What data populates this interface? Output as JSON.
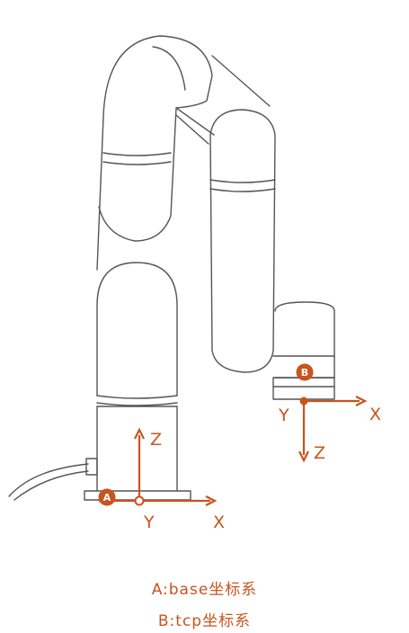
{
  "frame_a": {
    "badge": "A",
    "axis_z": "Z",
    "axis_y": "Y",
    "axis_x": "X"
  },
  "frame_b": {
    "badge": "B",
    "axis_z": "Z",
    "axis_y": "Y",
    "axis_x": "X"
  },
  "legend": {
    "line1": "A:base坐标系",
    "line2": "B:tcp坐标系"
  },
  "colors": {
    "accent": "#c8541e",
    "outline": "#555555"
  }
}
